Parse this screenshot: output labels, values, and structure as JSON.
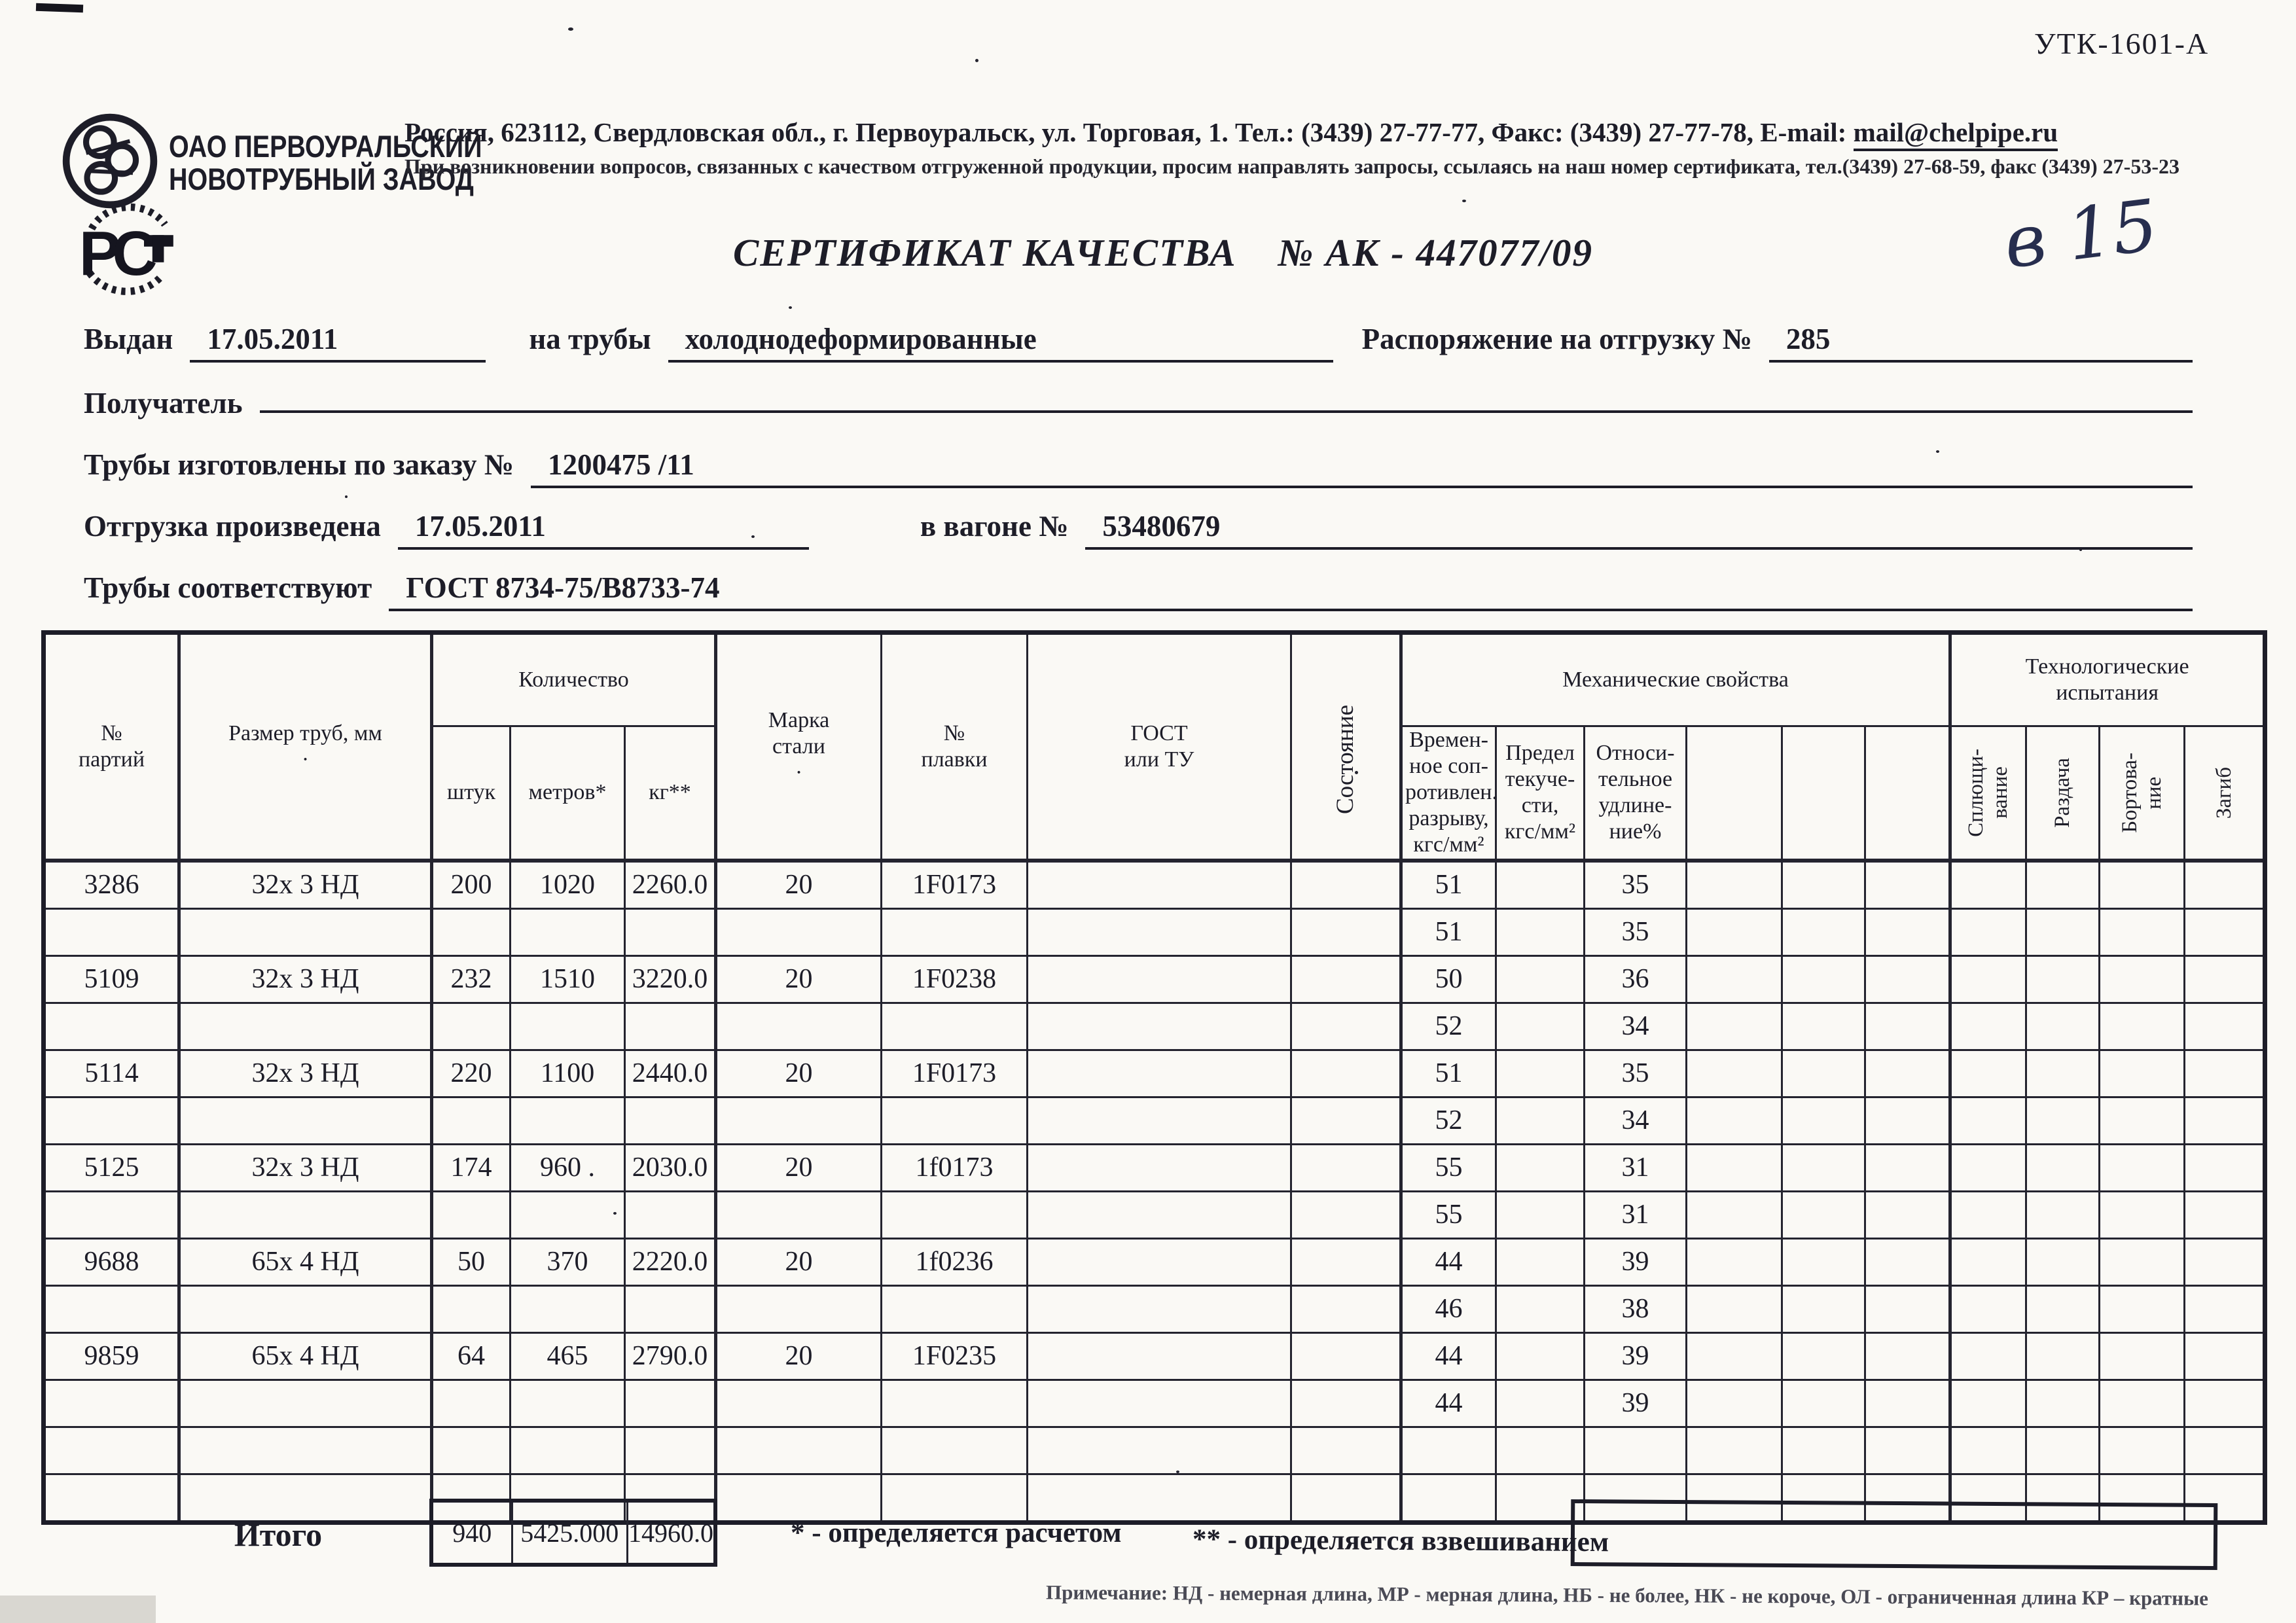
{
  "form_code": "УТК-1601-А",
  "company": {
    "name": "ОАО ПЕРВОУРАЛЬСКИЙ\nНОВОТРУБНЫЙ ЗАВОД",
    "address": "Россия, 623112, Свердловская обл., г. Первоуральск, ул. Торговая, 1. Тел.: (3439) 27-77-77, Факс: (3439) 27-77-78,  E-mail:",
    "email": "mail@chelpipe.ru",
    "note": "При возникновении вопросов, связанных с качеством отгруженной продукции, просим направлять запросы, ссылаясь на наш номер сертификата, тел.(3439) 27-68-59, факс (3439) 27-53-23"
  },
  "title": {
    "label": "СЕРТИФИКАТ КАЧЕСТВА",
    "number": "№  АК - 447077/09",
    "handwritten": "в 15"
  },
  "fields": {
    "issued_label": "Выдан",
    "issued_value": "17.05.2011",
    "pipes_label": "на трубы",
    "pipes_value": "холоднодеформированные",
    "order_label": "Распоряжение на отгрузку №",
    "order_value": "285",
    "receiver_label": "Получатель",
    "receiver_value": "",
    "made_label": "Трубы изготовлены по заказу №",
    "made_value": "1200475  /11",
    "shipped_label": "Отгрузка произведена",
    "shipped_value": "17.05.2011",
    "wagon_label": "в вагоне №",
    "wagon_value": "53480679",
    "standard_label": "Трубы соответствуют",
    "standard_value": "ГОСТ 8734-75/В8733-74"
  },
  "table": {
    "headers": {
      "batch": "№\nпартий",
      "size": "Размер труб, мм\n·",
      "quantity": "Количество",
      "pieces": "штук",
      "meters": "метров*",
      "kg": "кг**",
      "steel": "Марка\nстали\n·",
      "heat": "№\nплавки",
      "gost": "ГОСТ\nили ТУ",
      "condition": "Состояние",
      "mech": "Механические свойства",
      "tensile": "Времен-\nное соп-\nротивлен.\nразрыву,\nкгс/мм²",
      "yield": "Предел\nтекуче-\nсти,\nкгс/мм²",
      "elong": "Относи-\nтельное\nудлине-\nние%",
      "tech": "Технологические\nиспытания",
      "flatten": "Сплющи-\nвание",
      "expand": "Раздача",
      "flange": "Бортова-\nние",
      "bend": "Загиб"
    },
    "rows": [
      [
        "3286",
        "32х 3 НД",
        "200",
        "1020",
        "2260.0",
        "20",
        "1F0173",
        "",
        "",
        "51",
        "",
        "35",
        "",
        "",
        "",
        "",
        "",
        "",
        ""
      ],
      [
        "",
        "",
        "",
        "",
        "",
        "",
        "",
        "",
        "",
        "51",
        "",
        "35",
        "",
        "",
        "",
        "",
        "",
        "",
        ""
      ],
      [
        "5109",
        "32х 3 НД",
        "232",
        "1510",
        "3220.0",
        "20",
        "1F0238",
        "",
        "",
        "50",
        "",
        "36",
        "",
        "",
        "",
        "",
        "",
        "",
        ""
      ],
      [
        "",
        "",
        "",
        "",
        "",
        "",
        "",
        "",
        "",
        "52",
        "",
        "34",
        "",
        "",
        "",
        "",
        "",
        "",
        ""
      ],
      [
        "5114",
        "32х 3 НД",
        "220",
        "1100",
        "2440.0",
        "20",
        "1F0173",
        "",
        "",
        "51",
        "",
        "35",
        "",
        "",
        "",
        "",
        "",
        "",
        ""
      ],
      [
        "",
        "",
        "",
        "",
        "",
        "",
        "",
        "",
        "",
        "52",
        "",
        "34",
        "",
        "",
        "",
        "",
        "",
        "",
        ""
      ],
      [
        "5125",
        "32х 3 НД",
        "174",
        "960 .",
        "2030.0",
        "20",
        "1f0173",
        "",
        "",
        "55",
        "",
        "31",
        "",
        "",
        "",
        "",
        "",
        "",
        ""
      ],
      [
        "",
        "",
        "",
        "",
        "",
        "",
        "",
        "",
        "",
        "55",
        "",
        "31",
        "",
        "",
        "",
        "",
        "",
        "",
        ""
      ],
      [
        "9688",
        "65х 4 НД",
        "50",
        "370",
        "2220.0",
        "20",
        "1f0236",
        "",
        "",
        "44",
        "",
        "39",
        "",
        "",
        "",
        "",
        "",
        "",
        ""
      ],
      [
        "",
        "",
        "",
        "",
        "",
        "",
        "",
        "",
        "",
        "46",
        "",
        "38",
        "",
        "",
        "",
        "",
        "",
        "",
        ""
      ],
      [
        "9859",
        "65х 4 НД",
        "64",
        "465",
        "2790.0",
        "20",
        "1F0235",
        "",
        "",
        "44",
        "",
        "39",
        "",
        "",
        "",
        "",
        "",
        "",
        ""
      ],
      [
        "",
        "",
        "",
        "",
        "",
        "",
        "",
        "",
        "",
        "44",
        "",
        "39",
        "",
        "",
        "",
        "",
        "",
        "",
        ""
      ],
      [
        "",
        "",
        "",
        "",
        "",
        "",
        "",
        "",
        "",
        "",
        "",
        "",
        "",
        "",
        "",
        "",
        "",
        "",
        ""
      ],
      [
        "",
        "",
        "",
        "",
        "",
        "",
        "",
        "",
        "",
        "",
        "",
        "",
        "",
        "",
        "",
        "",
        "",
        "",
        ""
      ]
    ]
  },
  "totals": {
    "label": "Итого",
    "pieces": "940",
    "meters": "5425.000",
    "kg": "14960.0"
  },
  "footnotes": {
    "calc": "* - определяется расчетом",
    "weigh": "** - определяется взвешиванием"
  },
  "note_line": "Примечание: НД - немерная длина, МР - мерная длина, НБ - не более, НК - не короче, ОЛ - ограниченная длина  КР – кратные",
  "colors": {
    "ink": "#1d1d28",
    "handwriting": "#272e4e",
    "paper": "#faf9f5"
  }
}
